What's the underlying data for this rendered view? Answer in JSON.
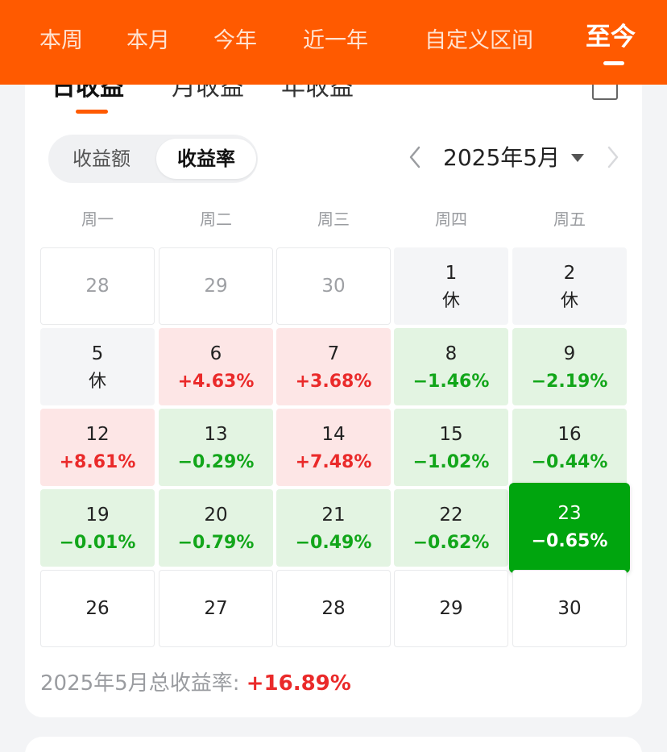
{
  "header": {
    "ranges": [
      "本周",
      "本月",
      "今年",
      "近一年",
      "自定义区间",
      "至今"
    ],
    "active_range": "至今"
  },
  "period_tabs": [
    "日收益",
    "月收益",
    "年收益"
  ],
  "toggle": {
    "amount": "收益额",
    "rate": "收益率",
    "selected": "收益率"
  },
  "month_selector": {
    "label": "2025年5月"
  },
  "weekdays": [
    "周一",
    "周二",
    "周三",
    "周四",
    "周五"
  ],
  "calendar": [
    [
      {
        "d": "28",
        "t": "outside"
      },
      {
        "d": "29",
        "t": "outside"
      },
      {
        "d": "30",
        "t": "outside"
      },
      {
        "d": "1",
        "v": "休",
        "t": "holiday"
      },
      {
        "d": "2",
        "v": "休",
        "t": "holiday"
      }
    ],
    [
      {
        "d": "5",
        "v": "休",
        "t": "holiday"
      },
      {
        "d": "6",
        "v": "+4.63%",
        "t": "up"
      },
      {
        "d": "7",
        "v": "+3.68%",
        "t": "up"
      },
      {
        "d": "8",
        "v": "−1.46%",
        "t": "down"
      },
      {
        "d": "9",
        "v": "−2.19%",
        "t": "down"
      }
    ],
    [
      {
        "d": "12",
        "v": "+8.61%",
        "t": "up"
      },
      {
        "d": "13",
        "v": "−0.29%",
        "t": "down"
      },
      {
        "d": "14",
        "v": "+7.48%",
        "t": "up"
      },
      {
        "d": "15",
        "v": "−1.02%",
        "t": "down"
      },
      {
        "d": "16",
        "v": "−0.44%",
        "t": "down"
      }
    ],
    [
      {
        "d": "19",
        "v": "−0.01%",
        "t": "down"
      },
      {
        "d": "20",
        "v": "−0.79%",
        "t": "down"
      },
      {
        "d": "21",
        "v": "−0.49%",
        "t": "down"
      },
      {
        "d": "22",
        "v": "−0.62%",
        "t": "down"
      },
      {
        "d": "23",
        "v": "−0.65%",
        "t": "selected"
      }
    ],
    [
      {
        "d": "26",
        "t": "future"
      },
      {
        "d": "27",
        "t": "future"
      },
      {
        "d": "28",
        "t": "future"
      },
      {
        "d": "29",
        "t": "future"
      },
      {
        "d": "30",
        "t": "future"
      }
    ]
  ],
  "summary": {
    "label": "2025年5月总收益率:",
    "value": "+16.89%"
  },
  "colors": {
    "brand": "#ff5a00",
    "up": "#ea2a2a",
    "down": "#12a61a",
    "selected": "#00a50e"
  }
}
